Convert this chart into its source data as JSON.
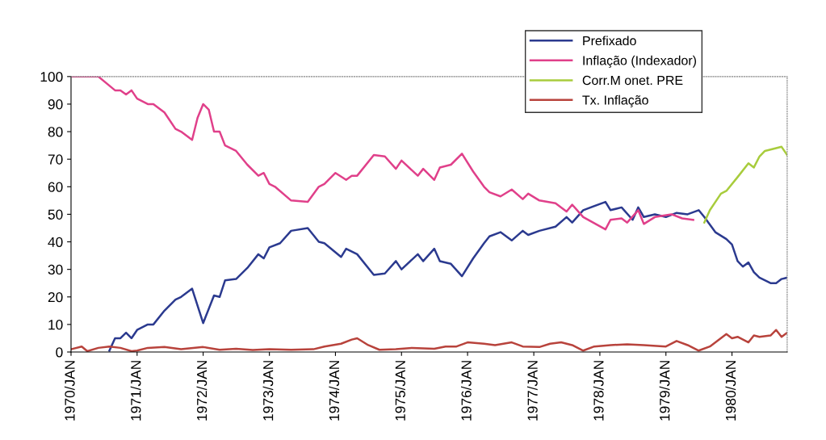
{
  "chart_data": {
    "type": "line",
    "ylim": [
      0,
      100
    ],
    "yticks": [
      0,
      10,
      20,
      30,
      40,
      50,
      60,
      70,
      80,
      90,
      100
    ],
    "xlim": [
      "1970-01",
      "1980-11"
    ],
    "xticks": [
      {
        "value": "1970-01",
        "label": "1970/JAN"
      },
      {
        "value": "1971-01",
        "label": "1971/JAN"
      },
      {
        "value": "1972-01",
        "label": "1972/JAN"
      },
      {
        "value": "1973-01",
        "label": "1973/JAN"
      },
      {
        "value": "1974-01",
        "label": "1974/JAN"
      },
      {
        "value": "1975-01",
        "label": "1975/JAN"
      },
      {
        "value": "1976-01",
        "label": "1976/JAN"
      },
      {
        "value": "1977-01",
        "label": "1977/JAN"
      },
      {
        "value": "1978-01",
        "label": "1978/JAN"
      },
      {
        "value": "1979-01",
        "label": "1979/JAN"
      },
      {
        "value": "1980-01",
        "label": "1980/JAN"
      }
    ],
    "legend": "top right",
    "marker": "none",
    "line_style": "solid",
    "series": [
      {
        "name": "Prefixado",
        "color": "#2b3a8f",
        "x": [
          "1970-08",
          "1970-09",
          "1970-10",
          "1970-11",
          "1970-12",
          "1971-01",
          "1971-03",
          "1971-04",
          "1971-06",
          "1971-08",
          "1971-09",
          "1971-11",
          "1972-01",
          "1972-03",
          "1972-04",
          "1972-05",
          "1972-07",
          "1972-09",
          "1972-11",
          "1972-12",
          "1973-01",
          "1973-03",
          "1973-05",
          "1973-08",
          "1973-10",
          "1973-11",
          "1974-02",
          "1974-03",
          "1974-05",
          "1974-08",
          "1974-10",
          "1974-12",
          "1975-01",
          "1975-04",
          "1975-05",
          "1975-07",
          "1975-08",
          "1975-10",
          "1975-12",
          "1976-02",
          "1976-04",
          "1976-05",
          "1976-07",
          "1976-09",
          "1976-11",
          "1976-12",
          "1977-02",
          "1977-05",
          "1977-07",
          "1977-08",
          "1977-10",
          "1978-02",
          "1978-03",
          "1978-05",
          "1978-07",
          "1978-08",
          "1978-09",
          "1978-11",
          "1979-01",
          "1979-03",
          "1979-05",
          "1979-07",
          "1979-08",
          "1979-10",
          "1979-12",
          "1980-01",
          "1980-02",
          "1980-03",
          "1980-04",
          "1980-05",
          "1980-06",
          "1980-08",
          "1980-09",
          "1980-10",
          "1980-11"
        ],
        "values": [
          0.5,
          5,
          5,
          7,
          5,
          8,
          10,
          10,
          15,
          19,
          20,
          23,
          10.5,
          20.5,
          20,
          26,
          26.5,
          30.5,
          35.5,
          34,
          38,
          39.5,
          44,
          45,
          40,
          39.5,
          34.5,
          37.5,
          35.5,
          28,
          28.5,
          33,
          30,
          35.5,
          33,
          37.5,
          33,
          32,
          27.5,
          34,
          39.5,
          42,
          43.5,
          40.5,
          44,
          42.5,
          44,
          45.5,
          49,
          47,
          51.5,
          54.5,
          51.5,
          52.5,
          48,
          52.5,
          49,
          50,
          49,
          50.5,
          50,
          51.5,
          49,
          43.5,
          41,
          39,
          33,
          31,
          32.5,
          29,
          27,
          25,
          25,
          26.5,
          27
        ]
      },
      {
        "name": "Inflação (Indexador)",
        "color": "#e0408a",
        "x": [
          "1970-01",
          "1970-06",
          "1970-09",
          "1970-10",
          "1970-11",
          "1970-12",
          "1971-01",
          "1971-03",
          "1971-04",
          "1971-06",
          "1971-08",
          "1971-09",
          "1971-11",
          "1971-12",
          "1972-01",
          "1972-02",
          "1972-03",
          "1972-04",
          "1972-05",
          "1972-07",
          "1972-09",
          "1972-11",
          "1972-12",
          "1973-01",
          "1973-02",
          "1973-05",
          "1973-08",
          "1973-10",
          "1973-11",
          "1974-01",
          "1974-03",
          "1974-04",
          "1974-05",
          "1974-08",
          "1974-10",
          "1974-12",
          "1975-01",
          "1975-04",
          "1975-05",
          "1975-07",
          "1975-08",
          "1975-10",
          "1975-12",
          "1976-02",
          "1976-04",
          "1976-05",
          "1976-07",
          "1976-09",
          "1976-11",
          "1976-12",
          "1977-02",
          "1977-05",
          "1977-07",
          "1977-08",
          "1977-10",
          "1978-02",
          "1978-03",
          "1978-05",
          "1978-06",
          "1978-08",
          "1978-09",
          "1978-11",
          "1979-02",
          "1979-04",
          "1979-06"
        ],
        "values": [
          100,
          100,
          95,
          95,
          93.5,
          95,
          92,
          90,
          90,
          87,
          81,
          80,
          77,
          85,
          90,
          88,
          80,
          80,
          75,
          73,
          68,
          64,
          65,
          61,
          60,
          55,
          54.5,
          60,
          61,
          65,
          62.5,
          64,
          64,
          71.5,
          71,
          66.5,
          69.5,
          64,
          66.5,
          62.5,
          67,
          68,
          72,
          65.5,
          60,
          58,
          56.5,
          59,
          55.5,
          57.5,
          55,
          54,
          51,
          53.5,
          49,
          44.5,
          48,
          48.5,
          47,
          51.5,
          46.5,
          49,
          50,
          48.5,
          48
        ]
      },
      {
        "name": "Corr.M onet. PRE",
        "color": "#a8cc3c",
        "x": [
          "1979-08",
          "1979-09",
          "1979-11",
          "1979-12",
          "1980-02",
          "1980-04",
          "1980-05",
          "1980-06",
          "1980-07",
          "1980-09",
          "1980-10",
          "1980-11"
        ],
        "values": [
          47,
          51.5,
          57.5,
          58.5,
          63.5,
          68.5,
          67,
          71,
          73,
          74,
          74.5,
          71.5
        ]
      },
      {
        "name": "Tx. Inflação",
        "color": "#b8433c",
        "x": [
          "1970-01",
          "1970-03",
          "1970-04",
          "1970-06",
          "1970-08",
          "1970-10",
          "1970-12",
          "1971-01",
          "1971-03",
          "1971-06",
          "1971-09",
          "1972-01",
          "1972-04",
          "1972-07",
          "1972-10",
          "1973-01",
          "1973-05",
          "1973-09",
          "1973-11",
          "1974-02",
          "1974-04",
          "1974-05",
          "1974-07",
          "1974-09",
          "1974-12",
          "1975-03",
          "1975-07",
          "1975-09",
          "1975-11",
          "1976-01",
          "1976-04",
          "1976-06",
          "1976-09",
          "1976-11",
          "1977-02",
          "1977-04",
          "1977-06",
          "1977-08",
          "1977-10",
          "1977-12",
          "1978-03",
          "1978-06",
          "1978-09",
          "1979-01",
          "1979-03",
          "1979-05",
          "1979-07",
          "1979-09",
          "1979-12",
          "1980-01",
          "1980-02",
          "1980-04",
          "1980-05",
          "1980-06",
          "1980-08",
          "1980-09",
          "1980-10",
          "1980-11"
        ],
        "values": [
          1,
          2,
          0.3,
          1.5,
          2,
          1.5,
          0.3,
          0.5,
          1.5,
          1.8,
          1,
          1.8,
          0.8,
          1.2,
          0.7,
          1,
          0.8,
          1,
          2,
          3,
          4.5,
          5,
          2.5,
          0.8,
          1,
          1.5,
          1.2,
          2,
          2,
          3.5,
          3,
          2.5,
          3.5,
          2,
          1.8,
          3,
          3.5,
          2.5,
          0.5,
          2,
          2.5,
          2.8,
          2.5,
          2,
          4,
          2.5,
          0.5,
          2,
          6.5,
          5,
          5.5,
          3.5,
          6,
          5.5,
          6,
          8,
          5.5,
          7
        ]
      }
    ]
  }
}
